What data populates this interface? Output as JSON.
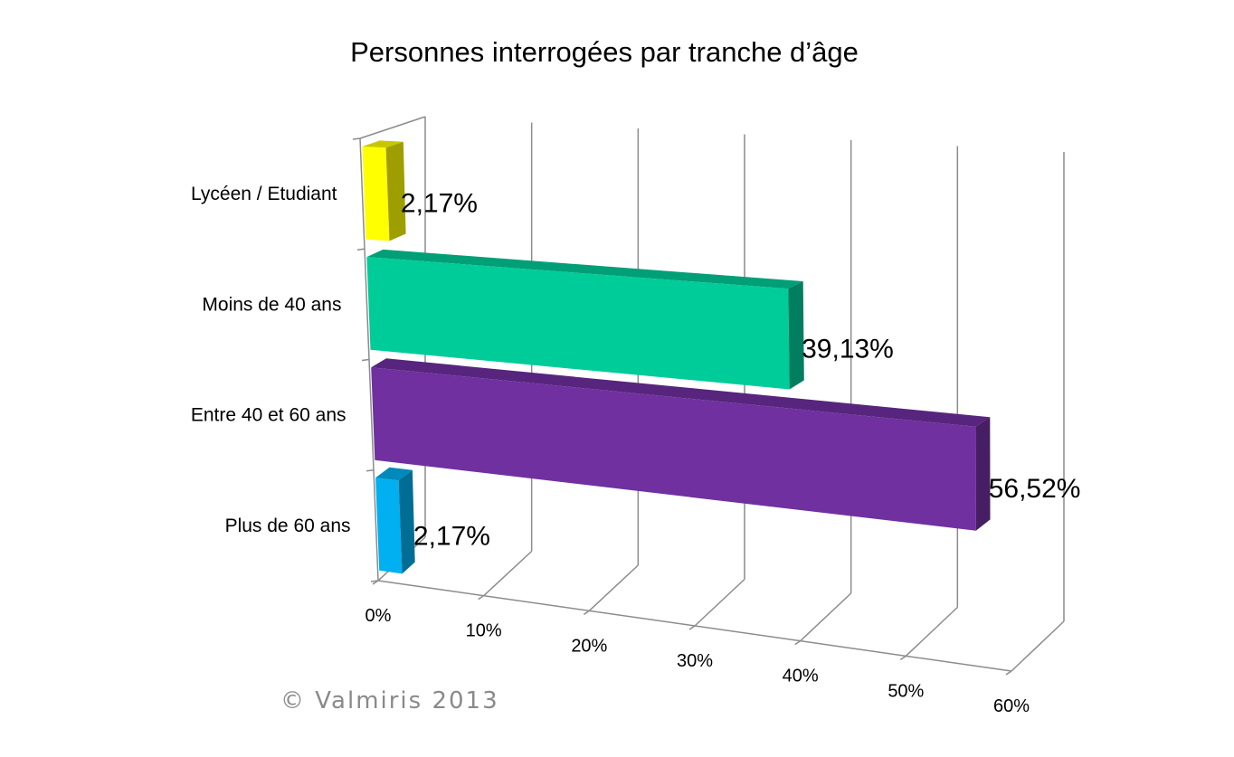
{
  "chart_data": {
    "type": "bar",
    "title": "Personnes interrogées par tranche d’âge",
    "categories": [
      "Lycéen / Etudiant",
      "Moins de 40 ans",
      "Entre 40 et 60 ans",
      "Plus de 60 ans"
    ],
    "values": [
      2.17,
      39.13,
      56.52,
      2.17
    ],
    "value_labels": [
      "2,17%",
      "39,13%",
      "56,52%",
      "2,17%"
    ],
    "colors": [
      "#FFFF00",
      "#00CC99",
      "#7030A0",
      "#00B0F0"
    ],
    "xlim": [
      0,
      60
    ],
    "x_ticks": [
      "0%",
      "10%",
      "20%",
      "30%",
      "40%",
      "50%",
      "60%"
    ],
    "orientation": "horizontal",
    "style": "3d",
    "grid": true,
    "legend": "none"
  },
  "watermark": "© Valmiris 2013"
}
